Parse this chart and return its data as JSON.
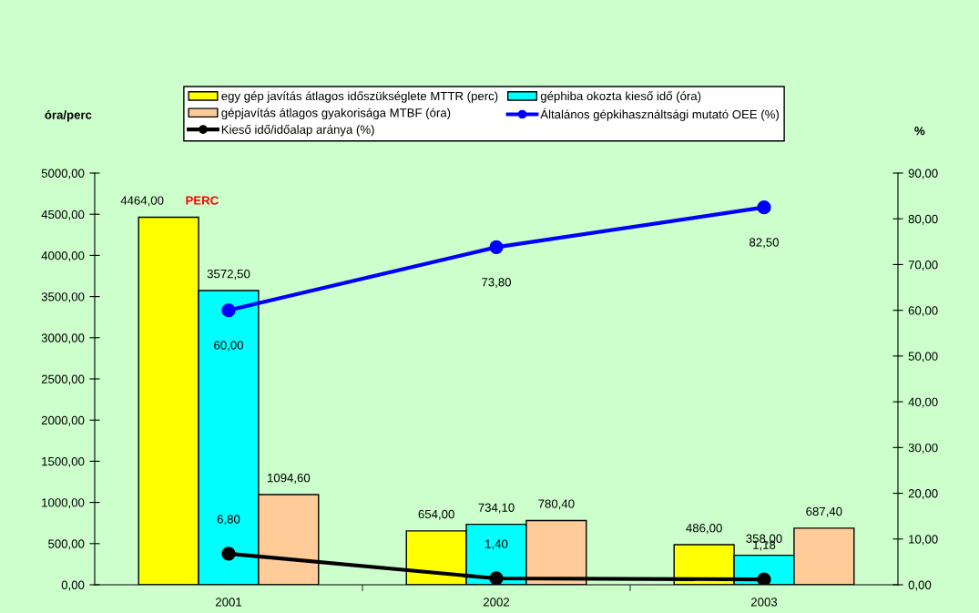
{
  "chart_data": {
    "type": "bar",
    "categories": [
      "2001",
      "2002",
      "2003"
    ],
    "ylabel": "óra/perc",
    "y2label": "%",
    "legend": "top",
    "marker": "circle",
    "line_style": "solid",
    "annotations": [
      "PERC"
    ],
    "series": [
      {
        "name": "egy gép javítás átlagos időszükséglete MTTR (perc)",
        "color": "#ffff00",
        "values": [
          4464,
          654,
          486
        ],
        "value_labels": [
          "4464,00",
          "654,00",
          "486,00"
        ]
      },
      {
        "name": "géphiba okozta kieső idő (óra)",
        "color": "#00ffff",
        "values": [
          3572.5,
          734.1,
          358
        ],
        "value_labels": [
          "3572,50",
          "734,10",
          "358,00"
        ]
      },
      {
        "name": "gépjavítás átlagos gyakorisága MTBF (óra)",
        "color": "#ffcc99",
        "values": [
          1094.6,
          780.4,
          687.4
        ],
        "value_labels": [
          "1094,60",
          "780,40",
          "687,40"
        ]
      },
      {
        "name": "Általános gépkihasználtsági mutató OEE (%)",
        "type": "line",
        "axis": "y2",
        "color": "#0000ff",
        "values": [
          60,
          73.8,
          82.5
        ],
        "value_labels": [
          "60,00",
          "73,80",
          "82,50"
        ]
      },
      {
        "name": "Kieső idő/időalap aránya (%)",
        "type": "line",
        "axis": "y2",
        "color": "#000000",
        "values": [
          6.8,
          1.4,
          1.18
        ],
        "value_labels": [
          "6,80",
          "1,40",
          "1,18"
        ]
      }
    ],
    "ylim": [
      0,
      5000
    ],
    "yticks": [
      {
        "value": 0,
        "label": "0,00"
      },
      {
        "value": 500,
        "label": "500,00"
      },
      {
        "value": 1000,
        "label": "1000,00"
      },
      {
        "value": 1500,
        "label": "1500,00"
      },
      {
        "value": 2000,
        "label": "2000,00"
      },
      {
        "value": 2500,
        "label": "2500,00"
      },
      {
        "value": 3000,
        "label": "3000,00"
      },
      {
        "value": 3500,
        "label": "3500,00"
      },
      {
        "value": 4000,
        "label": "4000,00"
      },
      {
        "value": 4500,
        "label": "4500,00"
      },
      {
        "value": 5000,
        "label": "5000,00"
      }
    ],
    "y2lim": [
      0,
      90
    ],
    "y2ticks": [
      {
        "value": 0,
        "label": "0,00"
      },
      {
        "value": 10,
        "label": "10,00"
      },
      {
        "value": 20,
        "label": "20,00"
      },
      {
        "value": 30,
        "label": "30,00"
      },
      {
        "value": 40,
        "label": "40,00"
      },
      {
        "value": 50,
        "label": "50,00"
      },
      {
        "value": 60,
        "label": "60,00"
      },
      {
        "value": 70,
        "label": "70,00"
      },
      {
        "value": 80,
        "label": "80,00"
      },
      {
        "value": 90,
        "label": "90,00"
      }
    ]
  }
}
